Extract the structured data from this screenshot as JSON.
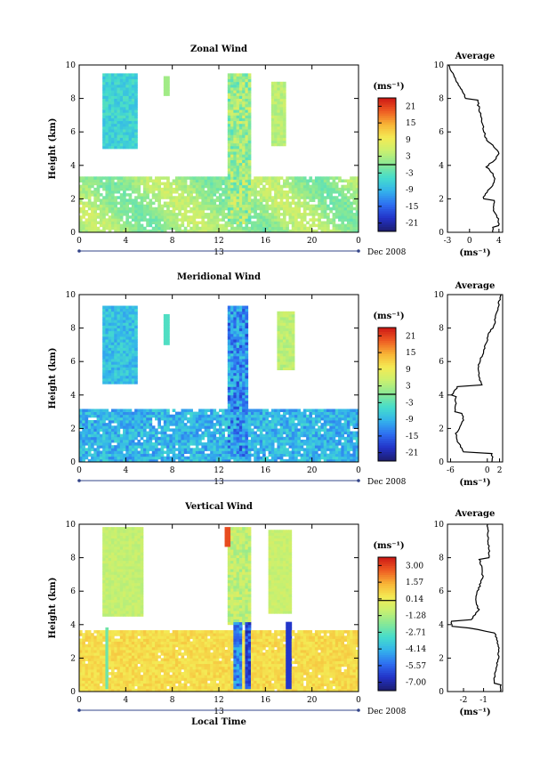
{
  "chart_data": [
    {
      "type": "heatmap",
      "title": "Zonal Wind",
      "ylabel": "Height (km)",
      "x_ticks": [
        "0",
        "4",
        "8",
        "12",
        "16",
        "20",
        "0"
      ],
      "y_ticks": [
        "0",
        "2",
        "4",
        "6",
        "8",
        "10"
      ],
      "xlim": [
        0,
        24
      ],
      "ylim": [
        0,
        10
      ],
      "date_label": "Dec 2008",
      "day_label": "13",
      "colorbar": {
        "unit": "(ms⁻¹)",
        "ticks": [
          "21",
          "15",
          "9",
          "3",
          "-3",
          "-9",
          "-15",
          "-21"
        ],
        "range": [
          -24,
          24
        ]
      },
      "average": {
        "title": "Average",
        "xlabel": "(ms⁻¹)",
        "x_ticks": [
          "-3",
          "0",
          "4"
        ],
        "xlim": [
          -3,
          4.5
        ],
        "y_ticks": [
          "0",
          "2",
          "4",
          "6",
          "8",
          "10"
        ]
      }
    },
    {
      "type": "heatmap",
      "title": "Meridional Wind",
      "ylabel": "Height (km)",
      "x_ticks": [
        "0",
        "4",
        "8",
        "12",
        "16",
        "20",
        "0"
      ],
      "y_ticks": [
        "0",
        "2",
        "4",
        "6",
        "8",
        "10"
      ],
      "xlim": [
        0,
        24
      ],
      "ylim": [
        0,
        10
      ],
      "date_label": "Dec 2008",
      "day_label": "13",
      "colorbar": {
        "unit": "(ms⁻¹)",
        "ticks": [
          "21",
          "15",
          "9",
          "3",
          "-3",
          "-9",
          "-15",
          "-21"
        ],
        "range": [
          -24,
          24
        ]
      },
      "average": {
        "title": "Average",
        "xlabel": "(ms⁻¹)",
        "x_ticks": [
          "-6",
          "0",
          "2"
        ],
        "xlim": [
          -6.5,
          2.5
        ],
        "y_ticks": [
          "0",
          "2",
          "4",
          "6",
          "8",
          "10"
        ]
      }
    },
    {
      "type": "heatmap",
      "title": "Vertical Wind",
      "ylabel": "Height (km)",
      "xlabel": "Local Time",
      "x_ticks": [
        "0",
        "4",
        "8",
        "12",
        "16",
        "20",
        "0"
      ],
      "y_ticks": [
        "0",
        "2",
        "4",
        "6",
        "8",
        "10"
      ],
      "xlim": [
        0,
        24
      ],
      "ylim": [
        0,
        10
      ],
      "date_label": "Dec 2008",
      "day_label": "13",
      "colorbar": {
        "unit": "(ms⁻¹)",
        "ticks": [
          "3.00",
          "1.57",
          "0.14",
          "-1.28",
          "-2.71",
          "-4.14",
          "-5.57",
          "-7.00"
        ],
        "range": [
          -7.7,
          3.7
        ]
      },
      "average": {
        "title": "Average",
        "xlabel": "(ms⁻¹)",
        "x_ticks": [
          "-2",
          "-1"
        ],
        "xlim": [
          -2.8,
          -0.05
        ],
        "y_ticks": [
          "0",
          "2",
          "4",
          "6",
          "8",
          "10"
        ]
      }
    }
  ],
  "colors": {
    "scale": [
      "#1c1c6e",
      "#2233c8",
      "#2e6ef0",
      "#33b2ec",
      "#45dccc",
      "#86e896",
      "#c8f070",
      "#f4ea54",
      "#f8b436",
      "#ee5c22",
      "#cc1614"
    ]
  }
}
